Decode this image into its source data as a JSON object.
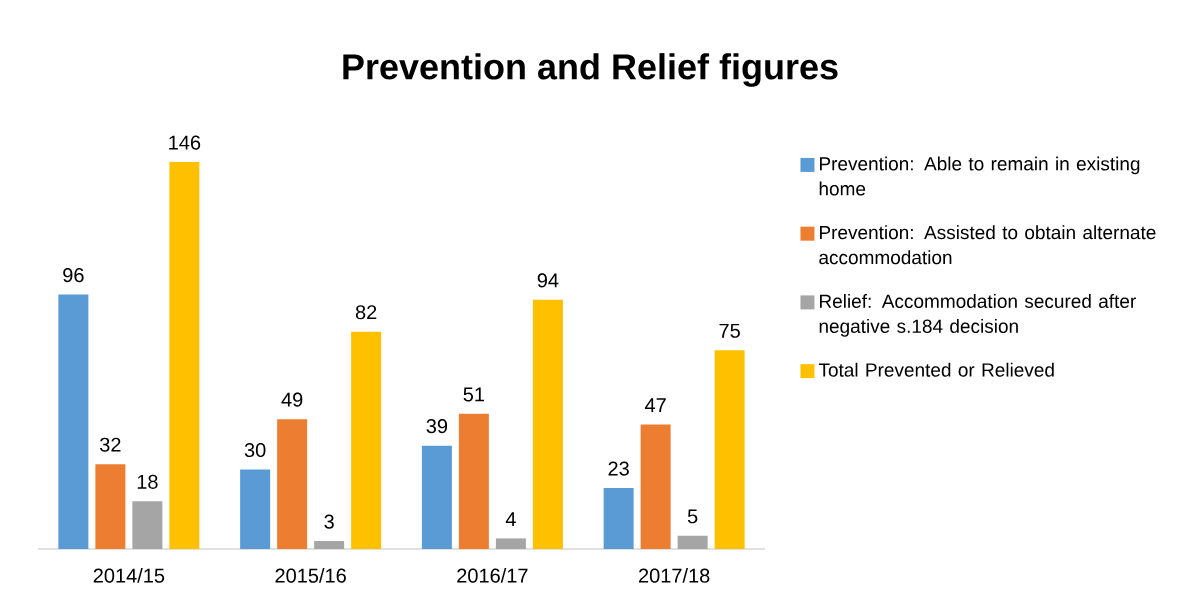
{
  "chart_data": {
    "type": "bar",
    "title": "Prevention and Relief figures",
    "categories": [
      "2014/15",
      "2015/16",
      "2016/17",
      "2017/18"
    ],
    "series": [
      {
        "name": "Prevention: Able to remain in existing home",
        "color": "#5b9bd5",
        "values": [
          96,
          30,
          39,
          23
        ]
      },
      {
        "name": "Prevention: Assisted to obtain alternate accommodation",
        "color": "#ed7d31",
        "values": [
          32,
          49,
          51,
          47
        ]
      },
      {
        "name": "Relief: Accommodation secured after negative s.184 decision",
        "color": "#a5a5a5",
        "values": [
          18,
          3,
          4,
          5
        ]
      },
      {
        "name": "Total Prevented or Relieved",
        "color": "#ffc000",
        "values": [
          146,
          82,
          94,
          75
        ]
      }
    ],
    "data_labels": true,
    "legend": "right"
  }
}
